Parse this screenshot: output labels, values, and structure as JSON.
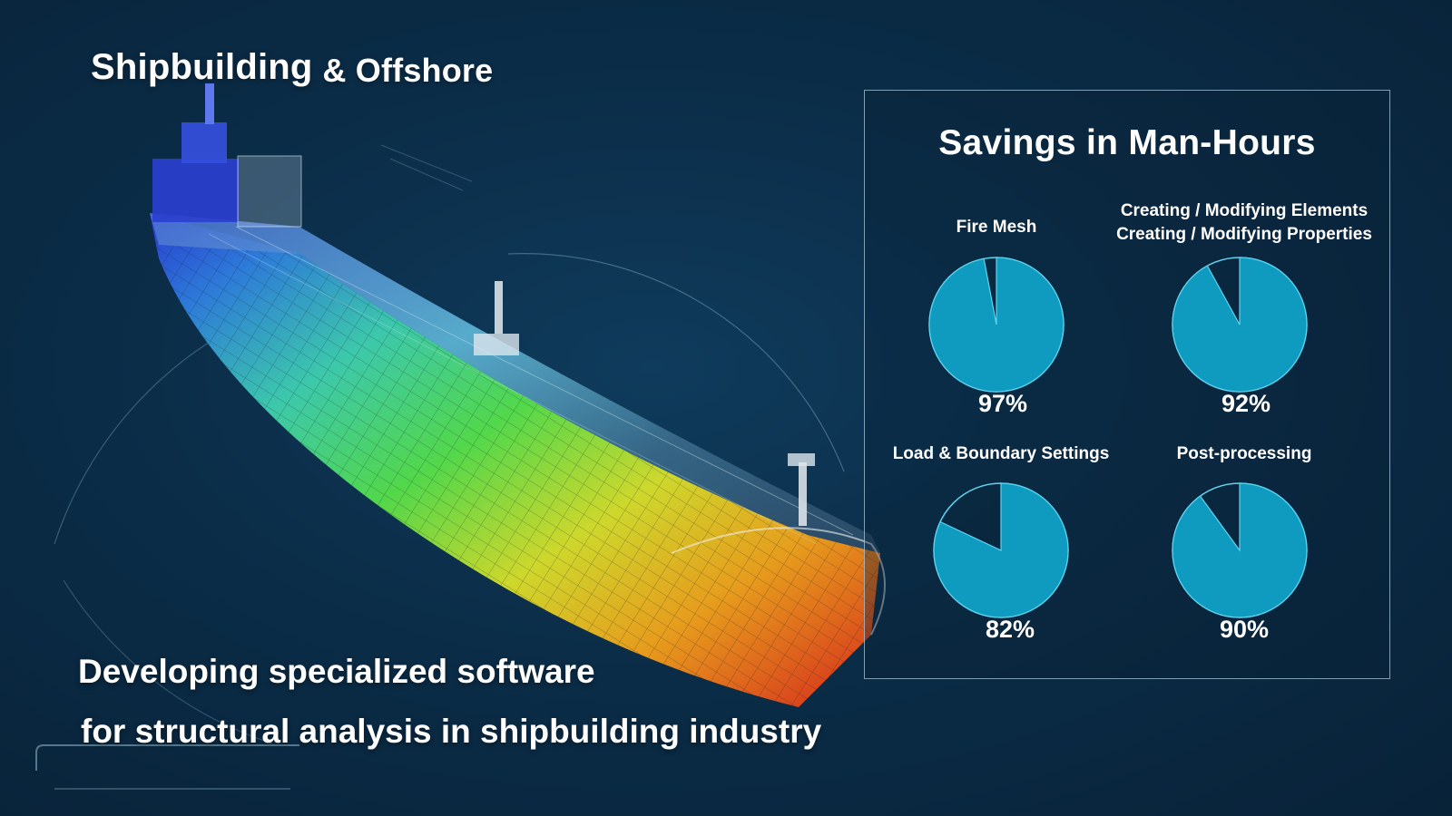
{
  "header": {
    "title_part1": "Shipbuilding",
    "title_part2": "& Offshore"
  },
  "tagline": {
    "line1": "Developing specialized software",
    "line2": "for structural analysis in shipbuilding industry"
  },
  "colors": {
    "background": "#0b2d48",
    "pie_fill": "#0e9bbf",
    "pie_outline": "#5fd4ef",
    "panel_border": "#aac8dc",
    "text": "#ffffff"
  },
  "chart_data": {
    "type": "pie",
    "title": "Savings in Man-Hours",
    "charts": [
      {
        "label_lines": [
          "Fire Mesh"
        ],
        "value": 97,
        "value_label": "97%"
      },
      {
        "label_lines": [
          "Creating / Modifying Elements",
          "Creating / Modifying Properties"
        ],
        "value": 92,
        "value_label": "92%"
      },
      {
        "label_lines": [
          "Load & Boundary Settings"
        ],
        "value": 82,
        "value_label": "82%"
      },
      {
        "label_lines": [
          "Post-processing"
        ],
        "value": 90,
        "value_label": "90%"
      }
    ]
  }
}
